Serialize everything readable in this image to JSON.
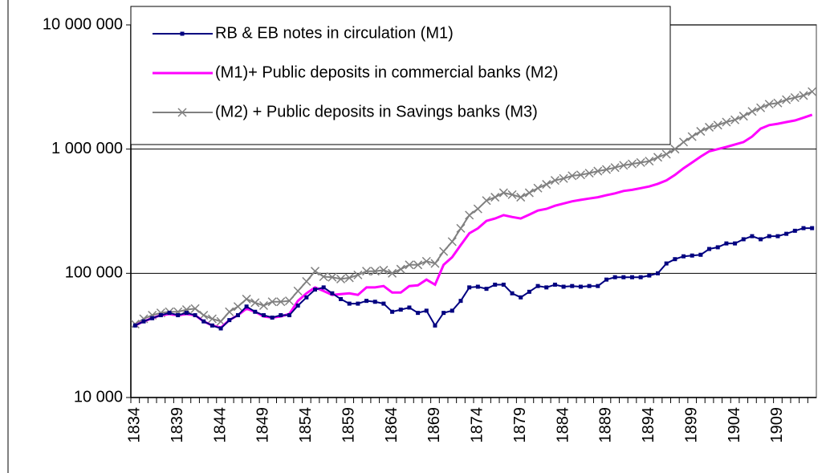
{
  "chart_data": {
    "type": "line",
    "log_scale": true,
    "grid": true,
    "legend": "top-left",
    "categories": [
      "1834",
      null,
      null,
      null,
      null,
      "1839",
      null,
      null,
      null,
      null,
      "1844",
      null,
      null,
      null,
      null,
      "1849",
      null,
      null,
      null,
      null,
      "1854",
      null,
      null,
      null,
      null,
      "1859",
      null,
      null,
      null,
      null,
      "1864",
      null,
      null,
      null,
      null,
      "1869",
      null,
      null,
      null,
      null,
      "1874",
      null,
      null,
      null,
      null,
      "1879",
      null,
      null,
      null,
      null,
      "1884",
      null,
      null,
      null,
      null,
      "1889",
      null,
      null,
      null,
      null,
      "1894",
      null,
      null,
      null,
      null,
      "1899",
      null,
      null,
      null,
      null,
      "1904",
      null,
      null,
      null,
      null,
      "1909",
      null,
      null,
      null,
      null
    ],
    "ylim": [
      10000,
      10000000
    ],
    "yticks": [
      {
        "value": 10000,
        "label": "10 000"
      },
      {
        "value": 100000,
        "label": "100 000"
      },
      {
        "value": 1000000,
        "label": "1 000 000"
      },
      {
        "value": 10000000,
        "label": "10 000 000"
      }
    ],
    "series": [
      {
        "name": "RB & EB notes in circulation (M1)",
        "color": "#000080",
        "marker": "square",
        "values": [
          38000,
          41000,
          43500,
          46000,
          48000,
          46000,
          48000,
          46000,
          41000,
          38000,
          36000,
          42000,
          46000,
          54000,
          49000,
          46000,
          44000,
          46000,
          46000,
          55000,
          64000,
          74000,
          77000,
          69000,
          62000,
          57000,
          57000,
          60000,
          59000,
          57000,
          49000,
          51000,
          53000,
          48000,
          50000,
          38000,
          48000,
          50000,
          60000,
          77000,
          78000,
          75000,
          81000,
          81000,
          69000,
          64000,
          71000,
          79000,
          77000,
          81000,
          78000,
          79000,
          78000,
          79000,
          79000,
          89000,
          93000,
          93000,
          93000,
          93000,
          96000,
          100000,
          120000,
          130000,
          137000,
          139000,
          141000,
          157000,
          162000,
          174000,
          174000,
          188000,
          199000,
          188000,
          199000,
          199000,
          208000,
          220000,
          231000,
          231000
        ]
      },
      {
        "name": "(M1)+ Public deposits in commercial banks (M2)",
        "color": "#ff00ff",
        "marker": "none",
        "values": [
          38000,
          41000,
          43500,
          46000,
          47000,
          46000,
          47000,
          46000,
          41000,
          38000,
          36500,
          42000,
          46000,
          52000,
          49000,
          45000,
          44000,
          45000,
          47000,
          60000,
          69000,
          77000,
          72000,
          67000,
          68000,
          69000,
          67000,
          77000,
          77000,
          79000,
          70000,
          70000,
          79000,
          80000,
          89000,
          81000,
          117000,
          135000,
          169000,
          210000,
          230000,
          264000,
          276000,
          294000,
          284000,
          276000,
          297000,
          320000,
          330000,
          350000,
          365000,
          380000,
          390000,
          400000,
          410000,
          425000,
          440000,
          460000,
          470000,
          485000,
          500000,
          525000,
          560000,
          620000,
          700000,
          780000,
          870000,
          960000,
          1000000,
          1040000,
          1090000,
          1140000,
          1260000,
          1460000,
          1560000,
          1600000,
          1650000,
          1700000,
          1790000,
          1890000
        ]
      },
      {
        "name": "(M2) + Public deposits in Savings banks (M3)",
        "color": "#808080",
        "marker": "x",
        "values": [
          39000,
          43000,
          46000,
          48000,
          49000,
          49000,
          51000,
          52000,
          46000,
          43000,
          41000,
          49000,
          54000,
          62000,
          58000,
          55000,
          59000,
          59000,
          60000,
          72000,
          86000,
          104000,
          94000,
          93000,
          90000,
          92000,
          97000,
          104000,
          104000,
          106000,
          100000,
          108000,
          117000,
          117000,
          125000,
          120000,
          150000,
          180000,
          230000,
          294000,
          330000,
          385000,
          410000,
          445000,
          430000,
          410000,
          445000,
          485000,
          520000,
          560000,
          580000,
          610000,
          620000,
          640000,
          665000,
          685000,
          710000,
          740000,
          760000,
          780000,
          800000,
          860000,
          910000,
          1000000,
          1140000,
          1260000,
          1390000,
          1500000,
          1560000,
          1650000,
          1720000,
          1840000,
          2010000,
          2150000,
          2300000,
          2350000,
          2500000,
          2600000,
          2700000,
          2900000
        ]
      }
    ]
  }
}
